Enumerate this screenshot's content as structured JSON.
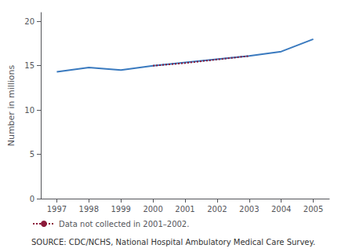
{
  "chart_data": {
    "type": "line",
    "ylabel": "Number in millions",
    "series": [
      {
        "x": [
          1997,
          1998,
          1999,
          2000,
          2003,
          2004,
          2005
        ],
        "values": [
          14.3,
          14.8,
          14.5,
          15.0,
          16.1,
          16.6,
          18.0
        ],
        "color": "#3a7abf",
        "line_style": "solid"
      },
      {
        "name": "Data not collected in 2001–2002.",
        "x": [
          2000,
          2001,
          2002,
          2003
        ],
        "values": [
          15.0,
          15.3,
          15.7,
          16.1
        ],
        "color": "#8b1a3a",
        "line_style": "dotted"
      }
    ],
    "xlim": [
      1996.5,
      2005.5
    ],
    "xticks": [
      1997,
      1998,
      1999,
      2000,
      2001,
      2002,
      2003,
      2004,
      2005
    ],
    "ylim": [
      0,
      21
    ],
    "yticks": [
      0,
      5,
      10,
      15,
      20
    ],
    "grid": false,
    "legend": "bottom",
    "annotations": [
      "SOURCE: CDC/NCHS, National Hospital Ambulatory Medical Care Survey."
    ]
  }
}
